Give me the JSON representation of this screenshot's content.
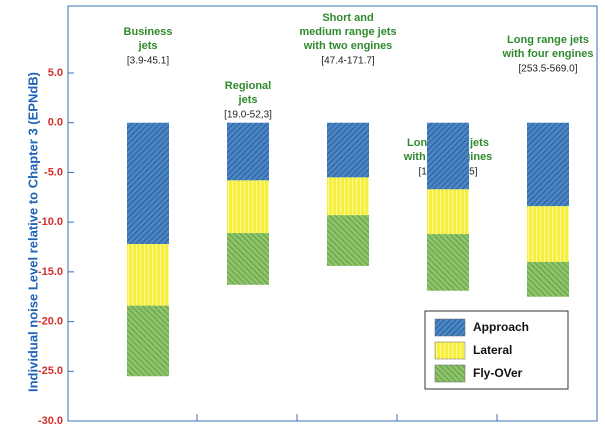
{
  "chart_data": {
    "type": "stacked_bar",
    "ylabel": "Individual noise Level relative to Chapter 3 (EPNdB)",
    "categories": [
      [
        "Business",
        "jets"
      ],
      [
        "Regional",
        "jets"
      ],
      [
        "Short and",
        "medium range jets",
        "with two engines"
      ],
      [
        "Long range jets",
        "with two engines"
      ],
      [
        "Long range jets",
        "with four engines"
      ]
    ],
    "ranges": [
      "[3.9-45.1]",
      "[19.0-52,3]",
      "[47.4-171.7]",
      "[131.0-351.5]",
      "[253.5-569.0]"
    ],
    "series": [
      {
        "name": "Approach",
        "color": "#4a86c4",
        "values": [
          -12.2,
          -5.8,
          -5.5,
          -6.7,
          -8.4
        ]
      },
      {
        "name": "Lateral",
        "color": "#f7ef3a",
        "values": [
          -6.2,
          -5.3,
          -3.8,
          -4.5,
          -5.6
        ]
      },
      {
        "name": "Fly-OVer",
        "color": "#8dc46a",
        "values": [
          -7.1,
          -5.2,
          -5.1,
          -5.7,
          -3.5
        ]
      }
    ],
    "ylim": [
      -30,
      5
    ],
    "yticks": [
      {
        "value": 5,
        "label": "5.0"
      },
      {
        "value": 0,
        "label": "0.0"
      },
      {
        "value": -5,
        "label": "-5.0"
      },
      {
        "value": -10,
        "label": "-10.0"
      },
      {
        "value": -15,
        "label": "-15.0"
      },
      {
        "value": -20,
        "label": "-20.0"
      },
      {
        "value": -25,
        "label": "-25.0"
      },
      {
        "value": -30,
        "label": "-30.0"
      }
    ],
    "legend": "lower right"
  }
}
